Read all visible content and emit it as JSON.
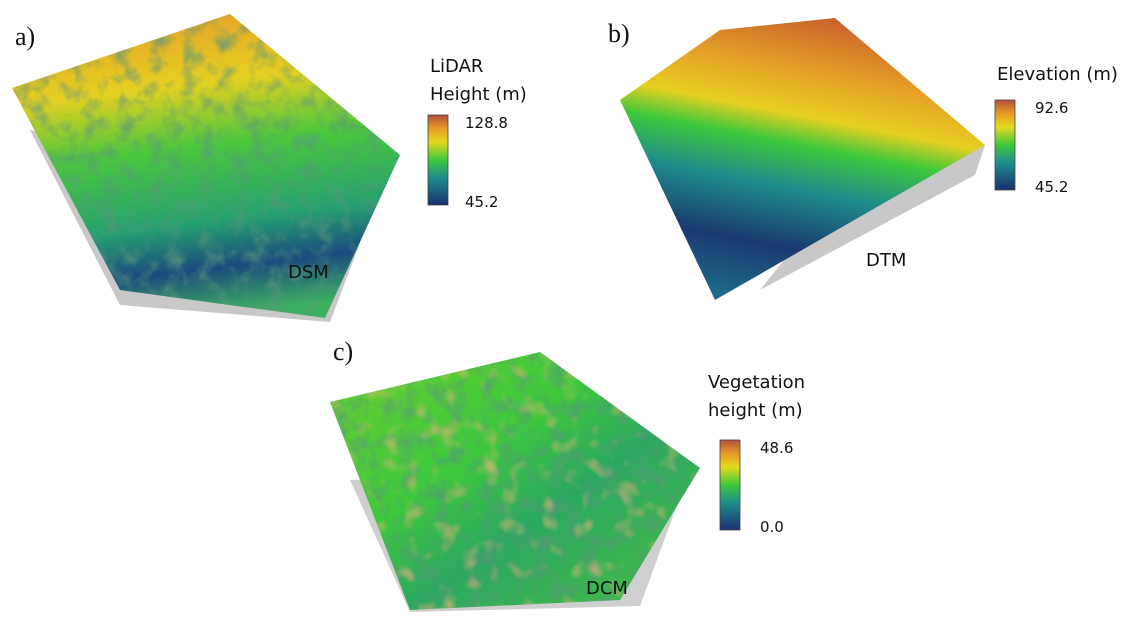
{
  "panels": [
    {
      "label": "a)",
      "name": "DSM",
      "legend_title": [
        "LiDAR",
        "Height (m)"
      ],
      "max": "128.8",
      "min": "45.2"
    },
    {
      "label": "b)",
      "name": "DTM",
      "legend_title": [
        "Elevation (m)"
      ],
      "max": "92.6",
      "min": "45.2"
    },
    {
      "label": "c)",
      "name": "DCM",
      "legend_title": [
        "Vegetation",
        "height (m)"
      ],
      "max": "48.6",
      "min": "0.0"
    }
  ]
}
